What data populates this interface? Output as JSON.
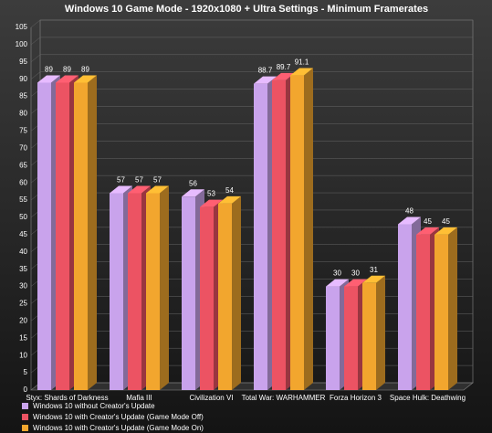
{
  "chart_data": {
    "type": "bar3d",
    "title": "Windows 10 Game Mode - 1920x1080 + Ultra Settings - Minimum Framerates",
    "categories": [
      "Styx: Shards of Darkness",
      "Mafia III",
      "Civilization VI",
      "Total War: WARHAMMER",
      "Forza Horizon 3",
      "Space Hulk: Deathwing"
    ],
    "series": [
      {
        "name": "Windows 10 without Creator's Update",
        "color": "#c9a3ec",
        "values": [
          89,
          57,
          56,
          88.7,
          30,
          48
        ]
      },
      {
        "name": "Windows 10 with Creator's Update (Game Mode Off)",
        "color": "#ec5363",
        "values": [
          89,
          57,
          53,
          89.7,
          30,
          45
        ]
      },
      {
        "name": "Windows 10 with Creator's Update (Game Mode On)",
        "color": "#f2a62e",
        "values": [
          89,
          57,
          54,
          91.1,
          31,
          45
        ]
      }
    ],
    "ylim": [
      0,
      105
    ],
    "yticks": [
      0,
      5,
      10,
      15,
      20,
      25,
      30,
      35,
      40,
      45,
      50,
      55,
      60,
      65,
      70,
      75,
      80,
      85,
      90,
      95,
      100,
      105
    ],
    "grid": true
  }
}
